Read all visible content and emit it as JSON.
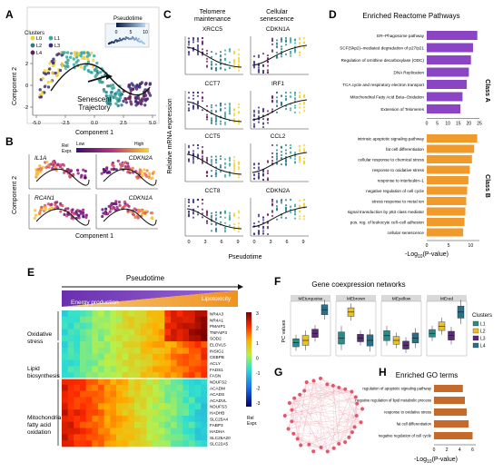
{
  "panels": {
    "A": {
      "letter": "A",
      "legend_title": "Clusters",
      "cluster_labels": [
        "L0",
        "L1",
        "L2",
        "L3",
        "L4"
      ],
      "colorbar_title": "Pseudotime",
      "colorbar_ticks": [
        "0",
        "5",
        "10"
      ],
      "xlabel": "Component 1",
      "ylabel": "Component 2",
      "x_ticks": [
        "-5.0",
        "-2.5",
        "0.0",
        "2.5",
        "5.0"
      ],
      "y_ticks": [
        "-2",
        "0",
        "2"
      ],
      "annotation": "Senescent\nTrajectory"
    },
    "B": {
      "letter": "B",
      "scale_title": "Rel\nExpr.",
      "scale_low": "Low",
      "scale_high": "High",
      "genes": [
        "IL1A",
        "CDKN2A",
        "RCAN1",
        "CDKN1A"
      ],
      "xlabel": "Component 1",
      "ylabel": "Component 2"
    },
    "C": {
      "letter": "C",
      "col1_title": "Telomere\nmaintenance",
      "col2_title": "Cellular\nsenescence",
      "ylabel": "Relative mRNA expression",
      "xlabel": "Pseudotime",
      "x_ticks": [
        "0",
        "3",
        "6",
        "9"
      ],
      "genes_left": [
        "XRCC5",
        "CCT7",
        "CCT5",
        "CCT8"
      ],
      "genes_right": [
        "CDKN1A",
        "IRF1",
        "CCL2",
        "CDKN2A"
      ]
    },
    "D": {
      "letter": "D",
      "title": "Enriched Reactome Pathways",
      "xlabel": "-Log10(P-value)",
      "classA_label": "Class A",
      "classB_label": "Class B"
    },
    "E": {
      "letter": "E",
      "arrow_label": "Pseudotime",
      "energy_label": "Energy production",
      "lipo_label": "Lipotoxicity",
      "groups": [
        "Oxidative\nstress",
        "Lipid\nbiosynthesis",
        "Mitochondria\nfatty acid\noxidation"
      ],
      "genes": [
        "NR4A3",
        "NR4A1",
        "PMAIP1",
        "TNFAIP3",
        "SOD2",
        "ELOVL5",
        "INSIG1",
        "CEBPB",
        "ACLY",
        "FADS1",
        "FASN",
        "NDUFS2",
        "ACADM",
        "ACADS",
        "ACADVL",
        "NDUFS3",
        "HADHB",
        "SLC25A4",
        "FABP3",
        "HADHA",
        "SLC25A20",
        "SLC22A5"
      ],
      "colorbar_ticks": [
        "3",
        "2",
        "1",
        "0",
        "-1",
        "-2",
        "-3"
      ],
      "colorbar_title": "Rel\nExpr."
    },
    "F": {
      "letter": "F",
      "title": "Gene coexpression networks",
      "ylabel": "PC values",
      "modules": [
        "MEturquoise",
        "MEbrown",
        "MEyellow",
        "MEred"
      ],
      "legend_title": "Clusters",
      "legend_items": [
        "L1",
        "L2",
        "L3",
        "L4"
      ]
    },
    "G": {
      "letter": "G"
    },
    "H": {
      "letter": "H",
      "title": "Enriched GO terms",
      "xlabel": "-Log10(P-value)",
      "x_ticks": [
        "0",
        "2",
        "4",
        "6"
      ]
    }
  },
  "colors": {
    "L0": "#f2d233",
    "L1": "#3aa8a0",
    "L2": "#2c7a8c",
    "L3": "#3b2f80",
    "L4": "#6a1e5a",
    "classA": "#8a44c4",
    "classB": "#f09a2b",
    "go_bar": "#c56a2a",
    "mod_L1": "#2b8a8a",
    "mod_L2": "#e8c22a",
    "mod_L3": "#5b2a7a",
    "mod_L4": "#2c6f86"
  },
  "chart_data": [
    {
      "id": "D",
      "type": "bar",
      "orientation": "horizontal",
      "title": "Enriched Reactome Pathways",
      "xlabel": "-Log10(P-value)",
      "series": [
        {
          "name": "Class A",
          "categories": [
            "ER–Phagosome pathway",
            "SCF(Skp2)–mediated degradation of p27/p21",
            "Regulation of ornithine decarboxylase (ODC)",
            "DNA Replication",
            "TCA cycle and respiratory electron transport",
            "Mitochondrial Fatty Acid Beta–Oxidation",
            "Extension of Telomeres"
          ],
          "values": [
            24,
            22,
            21,
            20,
            19,
            17,
            16
          ],
          "xlim": [
            0,
            25
          ],
          "x_ticks": [
            0,
            5,
            10,
            15,
            20,
            25
          ]
        },
        {
          "name": "Class B",
          "categories": [
            "intrinsic apoptotic signaling pathway",
            "fat cell differentiation",
            "cellular response to chemical stress",
            "response to oxidative stress",
            "response to interleukin–1",
            "negative regulation of cell cycle",
            "stress response to metal ion",
            "signal transduction by p53 class mediator",
            "pos. reg. of leukocyte cell–cell adhesion",
            "cellular senescence"
          ],
          "values": [
            11.5,
            10.8,
            10.3,
            9.8,
            9.5,
            9.2,
            9.0,
            8.8,
            8.6,
            8.3
          ],
          "xlim": [
            0,
            12
          ],
          "x_ticks": [
            0,
            5,
            10
          ]
        }
      ]
    },
    {
      "id": "H",
      "type": "bar",
      "orientation": "horizontal",
      "title": "Enriched GO terms",
      "xlabel": "-Log10(P-value)",
      "categories": [
        "regulation of apoptotic signaling pathway",
        "negative regulation of lipid metabolic process",
        "response to oxidative stress",
        "fat cell differentiation",
        "negative regulation of cell cycle"
      ],
      "values": [
        4.5,
        4.8,
        5.1,
        5.4,
        6.0
      ],
      "xlim": [
        0,
        6.5
      ],
      "x_ticks": [
        0,
        2,
        4,
        6
      ]
    }
  ]
}
